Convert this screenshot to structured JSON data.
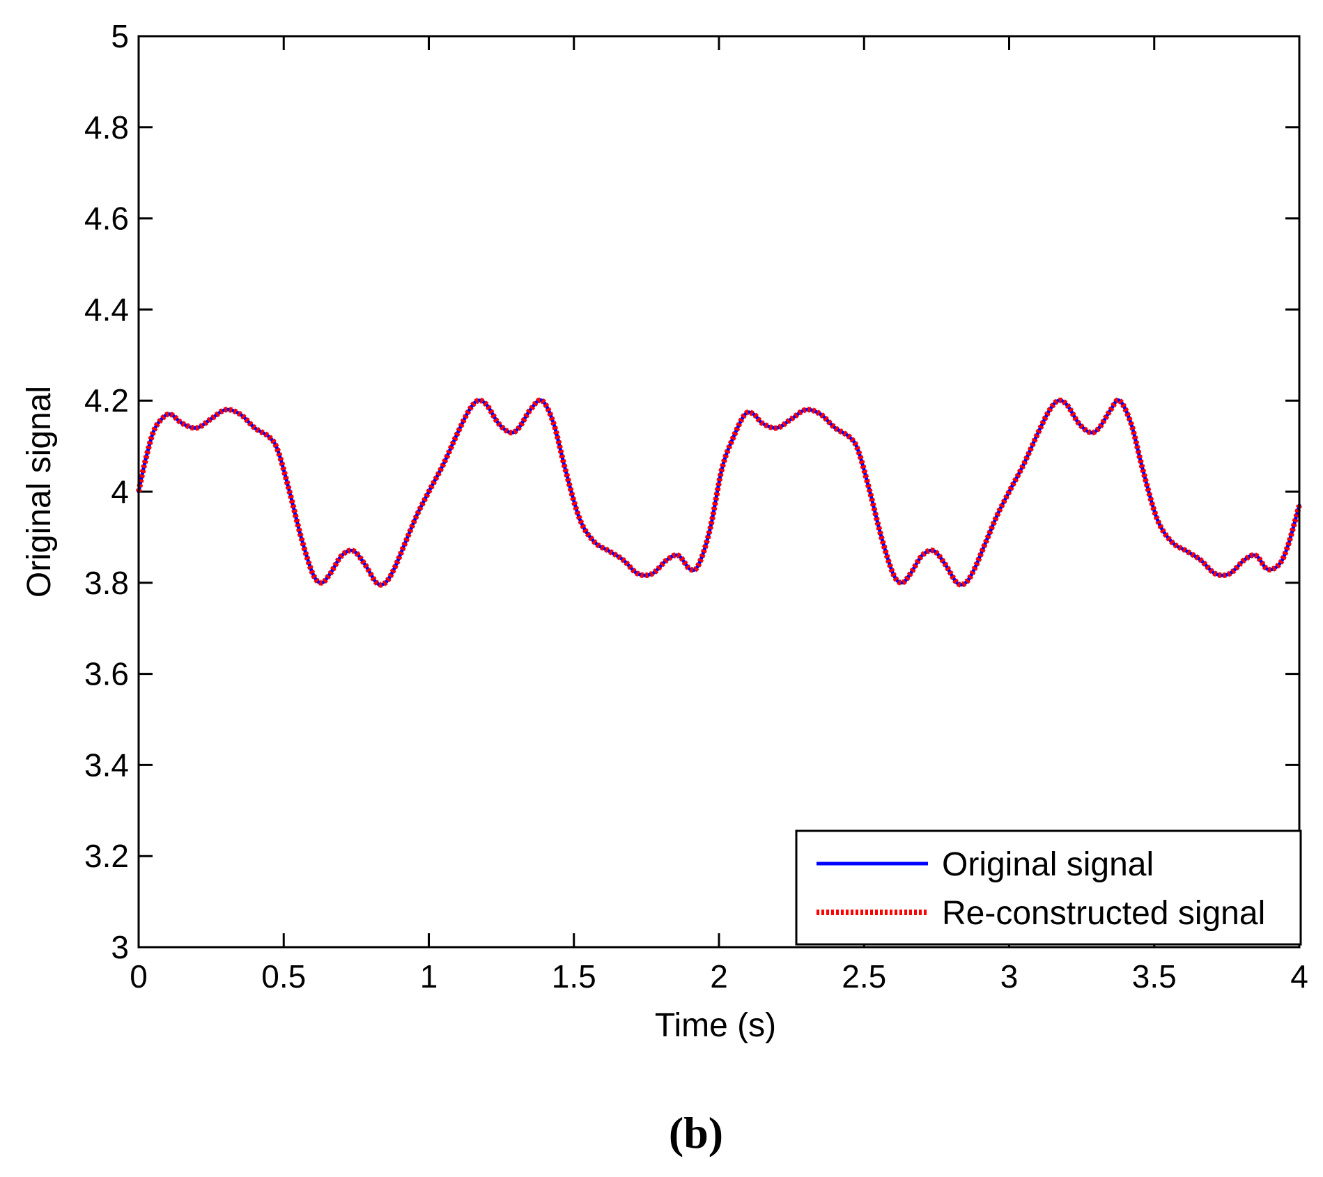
{
  "panel_label": "(b)",
  "colors": {
    "original": "#0000ff",
    "reconstructed": "#ff0000",
    "axes": "#000000"
  },
  "chart_data": {
    "type": "line",
    "title": "",
    "xlabel": "Time (s)",
    "ylabel": "Original signal",
    "xlim": [
      0,
      4
    ],
    "ylim": [
      3,
      5
    ],
    "xticks": [
      0,
      0.5,
      1,
      1.5,
      2,
      2.5,
      3,
      3.5,
      4
    ],
    "xtick_labels": [
      "0",
      "0.5",
      "1",
      "1.5",
      "2",
      "2.5",
      "3",
      "3.5",
      "4"
    ],
    "yticks": [
      3,
      3.2,
      3.4,
      3.6,
      3.8,
      4,
      4.2,
      4.4,
      4.6,
      4.8,
      5
    ],
    "ytick_labels": [
      "3",
      "3.2",
      "3.4",
      "3.6",
      "3.8",
      "4",
      "4.2",
      "4.4",
      "4.6",
      "4.8",
      "5"
    ],
    "grid": false,
    "legend": {
      "position": "bottom-right",
      "entries": [
        "Original signal",
        "Re-constructed signal"
      ]
    },
    "x": [
      0,
      0.02,
      0.05,
      0.08,
      0.11,
      0.15,
      0.2,
      0.25,
      0.3,
      0.35,
      0.4,
      0.45,
      0.48,
      0.52,
      0.56,
      0.6,
      0.63,
      0.66,
      0.7,
      0.74,
      0.78,
      0.82,
      0.85,
      0.88,
      0.92,
      0.96,
      1.0,
      1.05,
      1.1,
      1.14,
      1.17,
      1.2,
      1.24,
      1.28,
      1.31,
      1.35,
      1.39,
      1.43,
      1.47,
      1.52,
      1.57,
      1.62,
      1.67,
      1.72,
      1.77,
      1.82,
      1.86,
      1.9,
      1.93,
      1.97,
      2.01,
      2.05,
      2.09,
      2.12,
      2.15,
      2.2,
      2.25,
      2.3,
      2.35,
      2.4,
      2.45,
      2.48,
      2.52,
      2.56,
      2.6,
      2.63,
      2.66,
      2.7,
      2.74,
      2.78,
      2.82,
      2.85,
      2.88,
      2.92,
      2.96,
      3.0,
      3.05,
      3.1,
      3.14,
      3.17,
      3.2,
      3.24,
      3.28,
      3.31,
      3.35,
      3.38,
      3.42,
      3.46,
      3.51,
      3.56,
      3.61,
      3.66,
      3.71,
      3.76,
      3.81,
      3.85,
      3.89,
      3.93,
      3.96,
      4.0
    ],
    "series": [
      {
        "name": "Original signal",
        "style": "solid",
        "color": "#0000ff",
        "values": [
          4.0,
          4.06,
          4.13,
          4.16,
          4.17,
          4.15,
          4.14,
          4.16,
          4.18,
          4.17,
          4.14,
          4.12,
          4.09,
          4.0,
          3.9,
          3.82,
          3.8,
          3.82,
          3.86,
          3.87,
          3.84,
          3.8,
          3.8,
          3.83,
          3.89,
          3.95,
          4.0,
          4.06,
          4.13,
          4.18,
          4.2,
          4.19,
          4.15,
          4.13,
          4.14,
          4.18,
          4.2,
          4.15,
          4.05,
          3.94,
          3.89,
          3.87,
          3.85,
          3.82,
          3.82,
          3.85,
          3.86,
          3.83,
          3.84,
          3.92,
          4.05,
          4.12,
          4.17,
          4.17,
          4.15,
          4.14,
          4.16,
          4.18,
          4.17,
          4.14,
          4.12,
          4.09,
          4.0,
          3.9,
          3.82,
          3.8,
          3.82,
          3.86,
          3.87,
          3.84,
          3.8,
          3.8,
          3.83,
          3.89,
          3.95,
          4.0,
          4.06,
          4.13,
          4.18,
          4.2,
          4.19,
          4.15,
          4.13,
          4.14,
          4.18,
          4.2,
          4.15,
          4.05,
          3.94,
          3.89,
          3.87,
          3.85,
          3.82,
          3.82,
          3.85,
          3.86,
          3.83,
          3.84,
          3.88,
          3.97
        ]
      },
      {
        "name": "Re-constructed signal",
        "style": "dotted",
        "color": "#ff0000",
        "values": [
          4.0,
          4.06,
          4.13,
          4.16,
          4.17,
          4.15,
          4.14,
          4.16,
          4.18,
          4.17,
          4.14,
          4.12,
          4.09,
          4.0,
          3.9,
          3.82,
          3.8,
          3.82,
          3.86,
          3.87,
          3.84,
          3.8,
          3.8,
          3.83,
          3.89,
          3.95,
          4.0,
          4.06,
          4.13,
          4.18,
          4.2,
          4.19,
          4.15,
          4.13,
          4.14,
          4.18,
          4.2,
          4.15,
          4.05,
          3.94,
          3.89,
          3.87,
          3.85,
          3.82,
          3.82,
          3.85,
          3.86,
          3.83,
          3.84,
          3.92,
          4.05,
          4.12,
          4.17,
          4.17,
          4.15,
          4.14,
          4.16,
          4.18,
          4.17,
          4.14,
          4.12,
          4.09,
          4.0,
          3.9,
          3.82,
          3.8,
          3.82,
          3.86,
          3.87,
          3.84,
          3.8,
          3.8,
          3.83,
          3.89,
          3.95,
          4.0,
          4.06,
          4.13,
          4.18,
          4.2,
          4.19,
          4.15,
          4.13,
          4.14,
          4.18,
          4.2,
          4.15,
          4.05,
          3.94,
          3.89,
          3.87,
          3.85,
          3.82,
          3.82,
          3.85,
          3.86,
          3.83,
          3.84,
          3.88,
          3.97
        ]
      }
    ]
  }
}
